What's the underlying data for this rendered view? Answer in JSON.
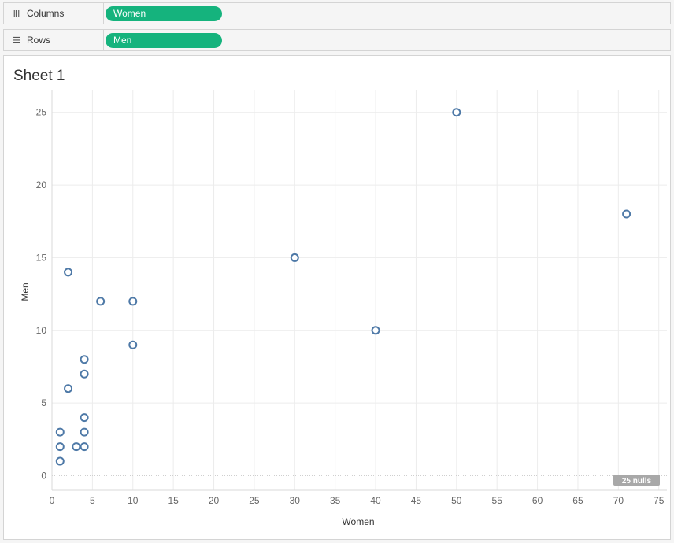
{
  "shelves": {
    "columns": {
      "label": "Columns",
      "pill": "Women"
    },
    "rows": {
      "label": "Rows",
      "pill": "Men"
    }
  },
  "sheet": {
    "title": "Sheet 1"
  },
  "chart_data": {
    "type": "scatter",
    "xlabel": "Women",
    "ylabel": "Men",
    "xlim": [
      0,
      76
    ],
    "ylim": [
      -1,
      26.5
    ],
    "xticks": [
      0,
      5,
      10,
      15,
      20,
      25,
      30,
      35,
      40,
      45,
      50,
      55,
      60,
      65,
      70,
      75
    ],
    "yticks": [
      0,
      5,
      10,
      15,
      20,
      25
    ],
    "grid": true,
    "null_badge": "25 nulls",
    "marker_color": "#4e79a7",
    "points": [
      {
        "x": 1,
        "y": 1
      },
      {
        "x": 1,
        "y": 2
      },
      {
        "x": 1,
        "y": 3
      },
      {
        "x": 2,
        "y": 6
      },
      {
        "x": 2,
        "y": 14
      },
      {
        "x": 3,
        "y": 2
      },
      {
        "x": 4,
        "y": 2
      },
      {
        "x": 4,
        "y": 3
      },
      {
        "x": 4,
        "y": 4
      },
      {
        "x": 4,
        "y": 7
      },
      {
        "x": 4,
        "y": 8
      },
      {
        "x": 6,
        "y": 12
      },
      {
        "x": 10,
        "y": 9
      },
      {
        "x": 10,
        "y": 12
      },
      {
        "x": 30,
        "y": 15
      },
      {
        "x": 40,
        "y": 10
      },
      {
        "x": 50,
        "y": 25
      },
      {
        "x": 71,
        "y": 18
      }
    ]
  }
}
